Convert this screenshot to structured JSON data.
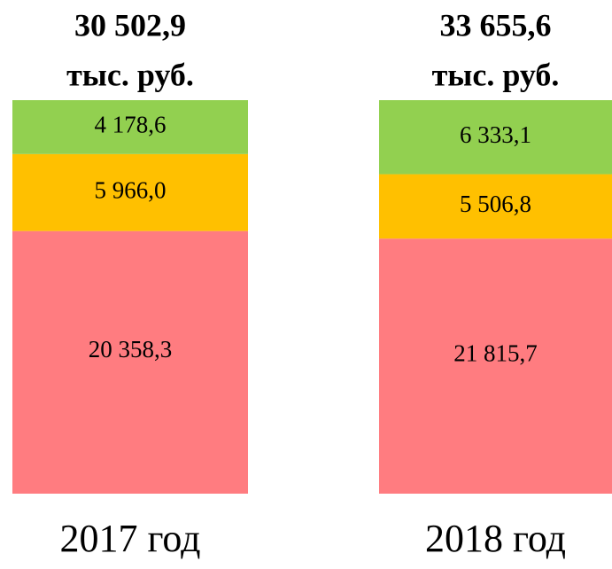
{
  "chart_data": {
    "type": "stacked_bar",
    "categories": [
      "2017 год",
      "2018 год"
    ],
    "totals": [
      30502.9,
      33655.6
    ],
    "total_labels": [
      "30 502,9",
      "33 655,6"
    ],
    "unit": "тыс. руб.",
    "series": [
      {
        "color": "#ff7c80",
        "values": [
          20358.3,
          21815.7
        ],
        "value_labels": [
          "20 358,3",
          "21 815,7"
        ]
      },
      {
        "color": "#ffc000",
        "values": [
          5966.0,
          5506.8
        ],
        "value_labels": [
          "5 966,0",
          "5 506,8"
        ]
      },
      {
        "color": "#92d050",
        "values": [
          4178.6,
          6333.1
        ],
        "value_labels": [
          "4 178,6",
          "6 333,1"
        ]
      }
    ]
  }
}
